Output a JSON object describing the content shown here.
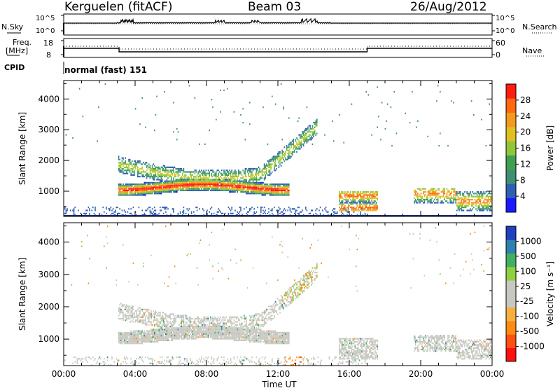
{
  "header": {
    "station": "Kerguelen (fitACF)",
    "beam": "Beam 03",
    "date": "26/Aug/2012"
  },
  "top_panels": {
    "nsky_label": "N.Sky",
    "nsky_ticks": [
      "10^5",
      "10^0"
    ],
    "nsearch_label": "N.Search",
    "nsearch_ticks": [
      "10^5",
      "10^0"
    ],
    "freq_label": "Freq.",
    "freq_unit": "[MHz]",
    "freq_ticks": [
      "18",
      "8"
    ],
    "nave_label": "Nave",
    "nave_ticks": [
      "60",
      "0"
    ],
    "cpid_label": "CPID",
    "cpid_value": "normal (fast) 151"
  },
  "chart_data": [
    {
      "type": "heatmap",
      "name": "power",
      "ylabel": "Slant Range [km]",
      "xlabel": "",
      "x_unit": "hours UT",
      "xlim": [
        0,
        24
      ],
      "ylim": [
        180,
        4600
      ],
      "yticks": [
        1000,
        2000,
        3000,
        4000
      ],
      "colorbar": {
        "label": "Power [dB]",
        "range": [
          0,
          32
        ],
        "ticks": [
          "4",
          "8",
          "12",
          "16",
          "20",
          "24",
          "28"
        ],
        "colors": [
          "#1a1aff",
          "#2f5fb3",
          "#3f8f73",
          "#3fa050",
          "#8fc63a",
          "#e0c020",
          "#f29a1e",
          "#ff6a10",
          "#ff1d10"
        ]
      },
      "features": [
        {
          "desc": "main echo band",
          "hours": [
            3.0,
            12.5
          ],
          "range_km": [
            900,
            1300
          ],
          "peak_power_db": 28
        },
        {
          "desc": "upper branch",
          "hours": [
            3.0,
            14.0
          ],
          "range_km": [
            1500,
            3000
          ],
          "peak_power_db": 16
        },
        {
          "desc": "near range scatter",
          "hours": [
            0.0,
            17.0
          ],
          "range_km": [
            200,
            500
          ],
          "peak_power_db": 8
        },
        {
          "desc": "afternoon patch",
          "hours": [
            15.5,
            17.5
          ],
          "range_km": [
            400,
            1000
          ],
          "peak_power_db": 28
        },
        {
          "desc": "late evening patch",
          "hours": [
            20.0,
            24.0
          ],
          "range_km": [
            400,
            1100
          ],
          "peak_power_db": 28
        }
      ]
    },
    {
      "type": "heatmap",
      "name": "velocity",
      "ylabel": "Slant Range [km]",
      "xlabel": "Time UT",
      "x_unit": "hours UT",
      "xlim": [
        0,
        24
      ],
      "ylim": [
        180,
        4600
      ],
      "yticks": [
        1000,
        2000,
        3000,
        4000
      ],
      "xticks": [
        "00:00",
        "04:00",
        "08:00",
        "12:00",
        "16:00",
        "20:00",
        "00:00"
      ],
      "colorbar": {
        "label": "Velocity [m s⁻¹]",
        "range": [
          -1250,
          1250
        ],
        "ticks": [
          "1000",
          "500",
          "100",
          "25",
          "-25",
          "-100",
          "-500",
          "-1000"
        ],
        "colors": [
          "#ff1010",
          "#ff5010",
          "#ff8a10",
          "#f7b040",
          "#c8c8c0",
          "#c8c8c0",
          "#8fd040",
          "#3fb060",
          "#2f7fb0",
          "#2040c0"
        ]
      },
      "features": [
        {
          "desc": "ground scatter band",
          "hours": [
            3.0,
            15.0
          ],
          "range_km": [
            900,
            2200
          ],
          "velocity_ms": 0
        },
        {
          "desc": "afternoon ground scatter",
          "hours": [
            15.5,
            17.5
          ],
          "range_km": [
            500,
            1100
          ],
          "velocity_ms": 0
        },
        {
          "desc": "evening ground scatter",
          "hours": [
            20.0,
            24.0
          ],
          "range_km": [
            500,
            1100
          ],
          "velocity_ms": 0
        },
        {
          "desc": "negative velocity echoes",
          "hours": [
            12.5,
            13.2
          ],
          "range_km": [
            300,
            700
          ],
          "velocity_ms": -500
        }
      ]
    }
  ]
}
